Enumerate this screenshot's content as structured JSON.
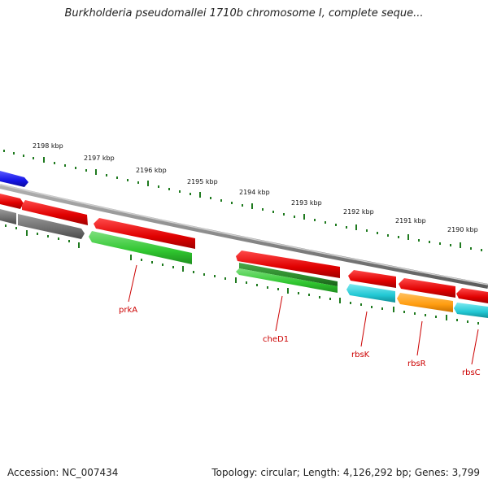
{
  "map": {
    "title": "Burkholderia pseudomallei 1710b chromosome I, complete seque...",
    "accession": "Accession: NC_007434",
    "summary": "Topology: circular; Length: 4,126,292 bp; Genes: 3,799"
  },
  "ruler": {
    "labels": [
      "2198 kbp",
      "2197 kbp",
      "2196 kbp",
      "2195 kbp",
      "2194 kbp",
      "2193 kbp",
      "2192 kbp",
      "2191 kbp",
      "2190 kbp"
    ]
  },
  "genes": [
    {
      "name": "prkA",
      "color": "#cc0000"
    },
    {
      "name": "cheD1",
      "color": "#cc0000"
    },
    {
      "name": "rbsK",
      "color": "#cc0000"
    },
    {
      "name": "rbsR",
      "color": "#cc0000"
    },
    {
      "name": "rbsC",
      "color": "#cc0000"
    }
  ],
  "colors": {
    "forward_cds": "#e30000",
    "reverse_cds": "#2ecc2e",
    "reverse_dark": "#2a8a2a",
    "rrna": "#22c8d4",
    "regulator": "#ff9d10",
    "pseudo": "#6e6e6e",
    "other": "#1414e6",
    "backbone": "#8a8a8a",
    "ruler_tick": "#1f7a1f",
    "label_line": "#cc0000"
  }
}
